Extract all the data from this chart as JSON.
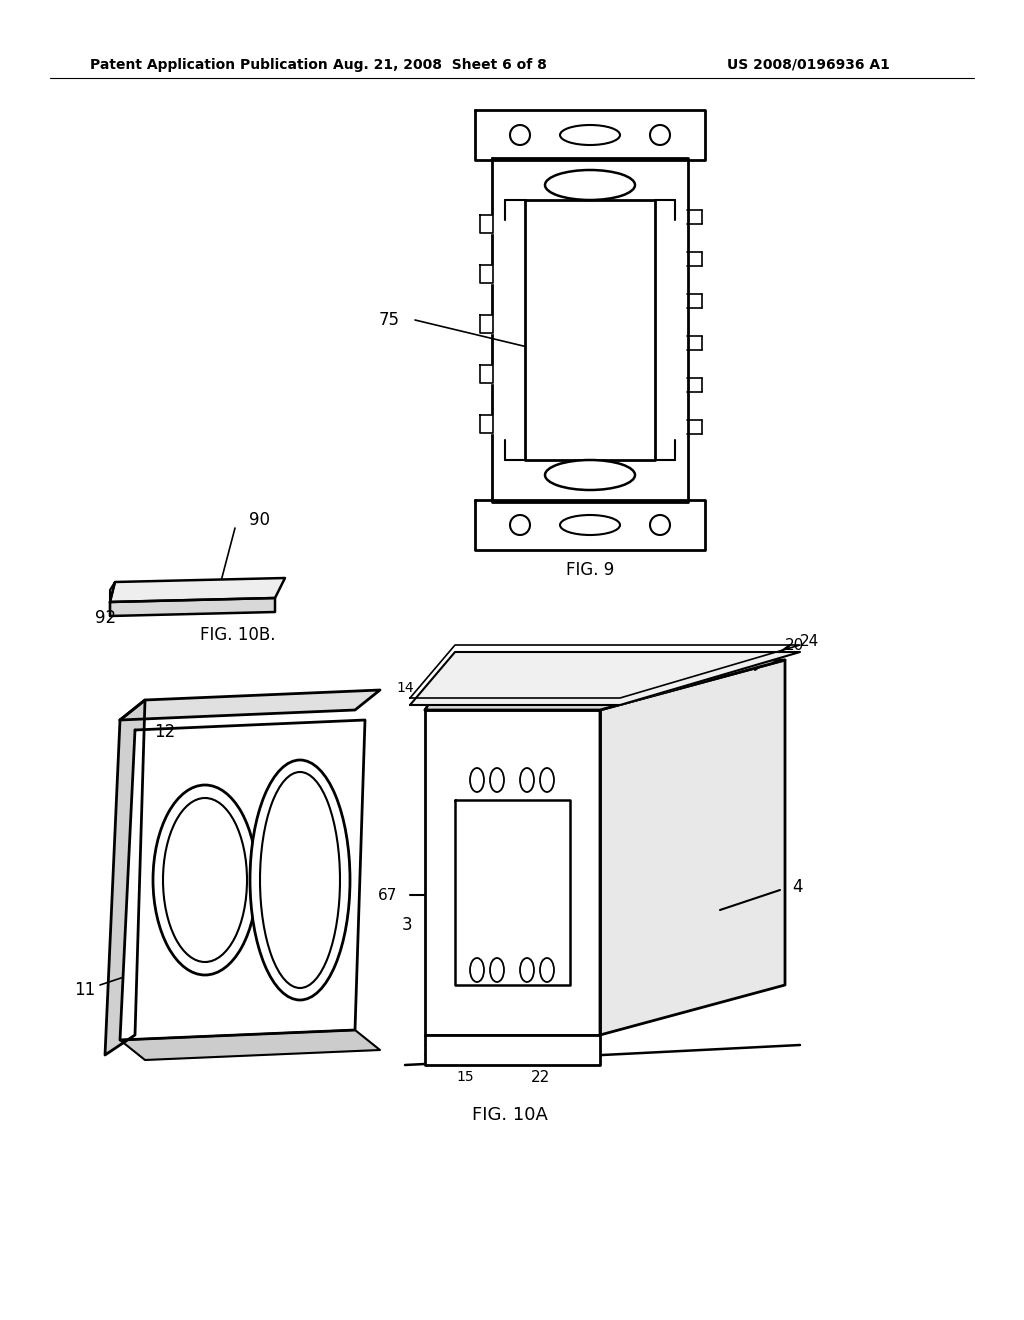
{
  "background_color": "#ffffff",
  "header_left": "Patent Application Publication",
  "header_center": "Aug. 21, 2008  Sheet 6 of 8",
  "header_right": "US 2008/0196936 A1",
  "fig9_label": "FIG. 9",
  "fig10a_label": "FIG. 10A",
  "fig10b_label": "FIG. 10B.",
  "line_color": "#000000"
}
